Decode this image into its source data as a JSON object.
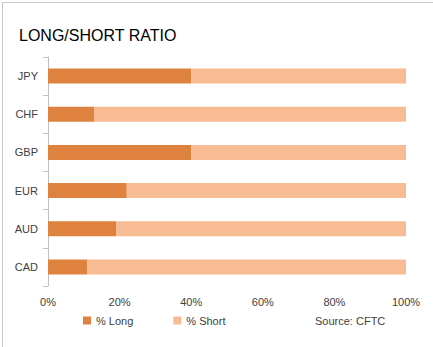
{
  "chart_data": {
    "type": "bar",
    "title": "LONG/SHORT RATIO",
    "orientation": "horizontal",
    "stacked": true,
    "grid": false,
    "legend": "bottom",
    "annotations": [
      "Source: CFTC"
    ],
    "categories": [
      "JPY",
      "CHF",
      "GBP",
      "EUR",
      "AUD",
      "CAD"
    ],
    "series": [
      {
        "name": "% Long",
        "color": "#e0823f",
        "values": [
          40,
          13,
          40,
          22,
          19,
          11
        ]
      },
      {
        "name": "% Short",
        "color": "#f8bc94",
        "values": [
          60,
          87,
          60,
          78,
          81,
          89
        ]
      }
    ],
    "xlim": [
      0,
      100
    ],
    "xticks": [
      {
        "value": 0,
        "label": "0%"
      },
      {
        "value": 20,
        "label": "20%"
      },
      {
        "value": 40,
        "label": "40%"
      },
      {
        "value": 60,
        "label": "60%"
      },
      {
        "value": 80,
        "label": "80%"
      },
      {
        "value": 100,
        "label": "100%"
      }
    ]
  }
}
